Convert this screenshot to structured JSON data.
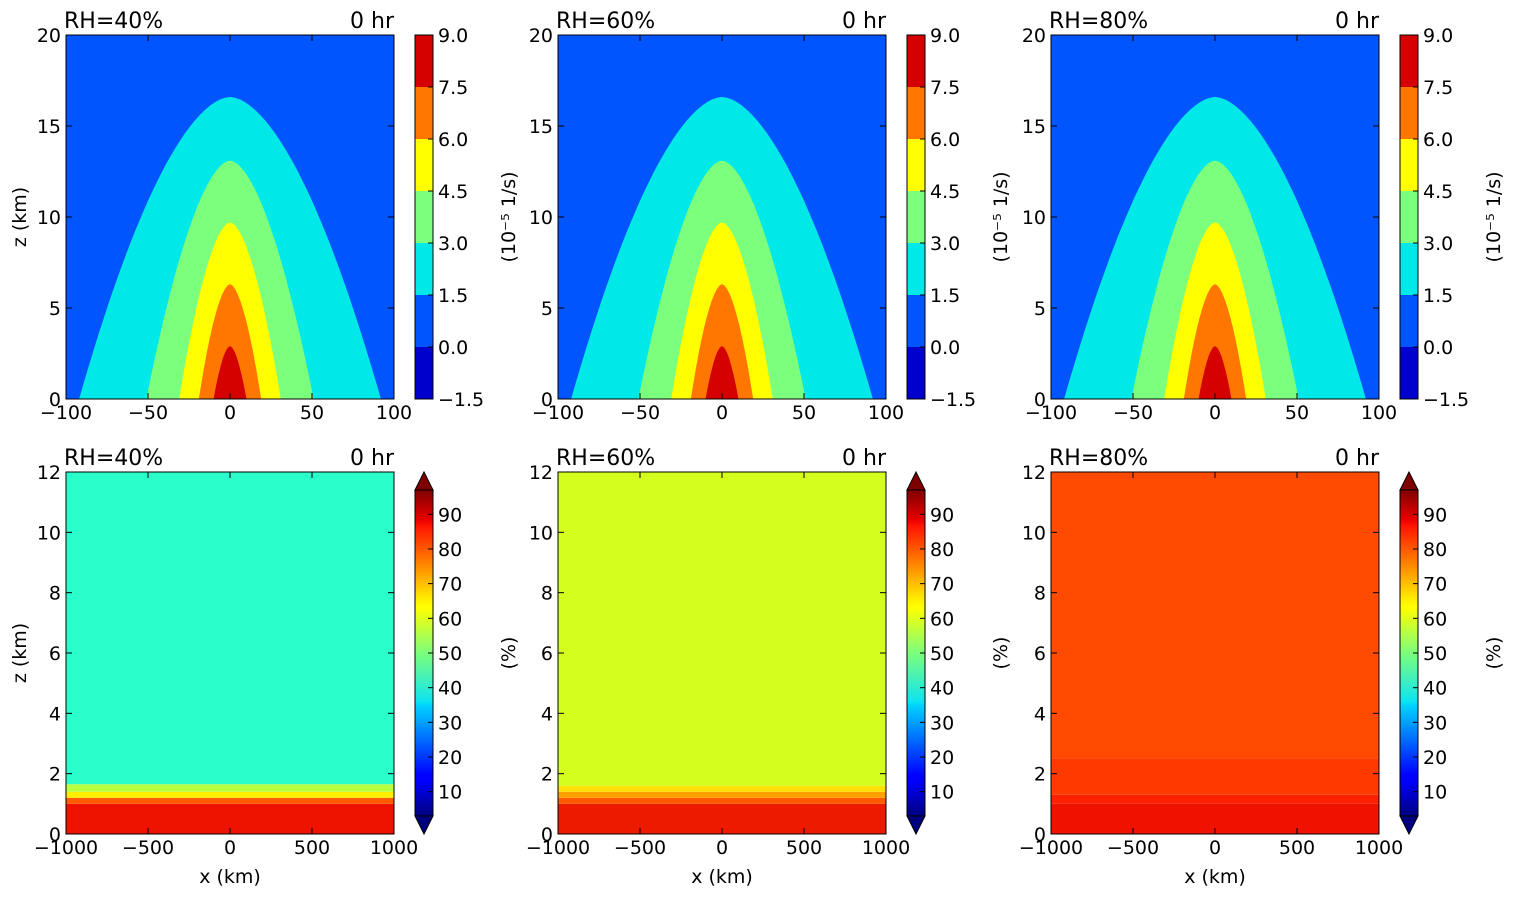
{
  "chart_data": [
    {
      "type": "heatmap",
      "field": "vorticity",
      "title_left": "RH=40%",
      "title_right": "0 hr",
      "xlabel": "",
      "ylabel": "z (km)",
      "xlim": [
        -100,
        100
      ],
      "ylim": [
        0,
        20
      ],
      "xticks": [
        "−100",
        "−50",
        "0",
        "50",
        "100"
      ],
      "xtick_values": [
        -100,
        -50,
        0,
        50,
        100
      ],
      "yticks": [
        "0",
        "5",
        "10",
        "15",
        "20"
      ],
      "ytick_values": [
        0,
        5,
        10,
        15,
        20
      ],
      "colorbar_label": "(10⁻⁵ 1/s)",
      "colorbar_ticks": [
        "−1.5",
        "0.0",
        "1.5",
        "3.0",
        "4.5",
        "6.0",
        "7.5",
        "9.0"
      ],
      "colorbar_levels": [
        -1.5,
        0.0,
        1.5,
        3.0,
        4.5,
        6.0,
        7.5,
        9.0
      ],
      "colorbar_colors": [
        "#0000cd",
        "#0055ff",
        "#00e8e8",
        "#7cff7c",
        "#ffff00",
        "#ff7700",
        "#d50000"
      ],
      "background_color": "#0055ff",
      "contours": [
        {
          "level": 1.5,
          "half_width_km": 92,
          "top_km": 16.6,
          "color": "#00e8e8"
        },
        {
          "level": 3.0,
          "half_width_km": 51,
          "top_km": 13.1,
          "color": "#7cff7c"
        },
        {
          "level": 4.5,
          "half_width_km": 31,
          "top_km": 9.7,
          "color": "#ffff00"
        },
        {
          "level": 6.0,
          "half_width_km": 19,
          "top_km": 6.3,
          "color": "#ff7700"
        },
        {
          "level": 7.5,
          "half_width_km": 10,
          "top_km": 2.9,
          "color": "#d50000"
        }
      ]
    },
    {
      "type": "heatmap",
      "field": "vorticity",
      "title_left": "RH=60%",
      "title_right": "0 hr",
      "xlabel": "",
      "ylabel": "",
      "xlim": [
        -100,
        100
      ],
      "ylim": [
        0,
        20
      ],
      "xticks": [
        "−100",
        "−50",
        "0",
        "50",
        "100"
      ],
      "xtick_values": [
        -100,
        -50,
        0,
        50,
        100
      ],
      "yticks": [
        "0",
        "5",
        "10",
        "15",
        "20"
      ],
      "ytick_values": [
        0,
        5,
        10,
        15,
        20
      ],
      "colorbar_label": "(10⁻⁵ 1/s)",
      "colorbar_ticks": [
        "−1.5",
        "0.0",
        "1.5",
        "3.0",
        "4.5",
        "6.0",
        "7.5",
        "9.0"
      ],
      "colorbar_levels": [
        -1.5,
        0.0,
        1.5,
        3.0,
        4.5,
        6.0,
        7.5,
        9.0
      ],
      "colorbar_colors": [
        "#0000cd",
        "#0055ff",
        "#00e8e8",
        "#7cff7c",
        "#ffff00",
        "#ff7700",
        "#d50000"
      ],
      "background_color": "#0055ff",
      "contours": [
        {
          "level": 1.5,
          "half_width_km": 92,
          "top_km": 16.6,
          "color": "#00e8e8"
        },
        {
          "level": 3.0,
          "half_width_km": 51,
          "top_km": 13.1,
          "color": "#7cff7c"
        },
        {
          "level": 4.5,
          "half_width_km": 31,
          "top_km": 9.7,
          "color": "#ffff00"
        },
        {
          "level": 6.0,
          "half_width_km": 19,
          "top_km": 6.3,
          "color": "#ff7700"
        },
        {
          "level": 7.5,
          "half_width_km": 10,
          "top_km": 2.9,
          "color": "#d50000"
        }
      ]
    },
    {
      "type": "heatmap",
      "field": "vorticity",
      "title_left": "RH=80%",
      "title_right": "0 hr",
      "xlabel": "",
      "ylabel": "",
      "xlim": [
        -100,
        100
      ],
      "ylim": [
        0,
        20
      ],
      "xticks": [
        "−100",
        "−50",
        "0",
        "50",
        "100"
      ],
      "xtick_values": [
        -100,
        -50,
        0,
        50,
        100
      ],
      "yticks": [
        "0",
        "5",
        "10",
        "15",
        "20"
      ],
      "ytick_values": [
        0,
        5,
        10,
        15,
        20
      ],
      "colorbar_label": "(10⁻⁵ 1/s)",
      "colorbar_ticks": [
        "−1.5",
        "0.0",
        "1.5",
        "3.0",
        "4.5",
        "6.0",
        "7.5",
        "9.0"
      ],
      "colorbar_levels": [
        -1.5,
        0.0,
        1.5,
        3.0,
        4.5,
        6.0,
        7.5,
        9.0
      ],
      "colorbar_colors": [
        "#0000cd",
        "#0055ff",
        "#00e8e8",
        "#7cff7c",
        "#ffff00",
        "#ff7700",
        "#d50000"
      ],
      "background_color": "#0055ff",
      "contours": [
        {
          "level": 1.5,
          "half_width_km": 92,
          "top_km": 16.6,
          "color": "#00e8e8"
        },
        {
          "level": 3.0,
          "half_width_km": 51,
          "top_km": 13.1,
          "color": "#7cff7c"
        },
        {
          "level": 4.5,
          "half_width_km": 31,
          "top_km": 9.7,
          "color": "#ffff00"
        },
        {
          "level": 6.0,
          "half_width_km": 19,
          "top_km": 6.3,
          "color": "#ff7700"
        },
        {
          "level": 7.5,
          "half_width_km": 10,
          "top_km": 2.9,
          "color": "#d50000"
        }
      ]
    },
    {
      "type": "heatmap",
      "field": "relative_humidity",
      "title_left": "RH=40%",
      "title_right": "0 hr",
      "xlabel": "x (km)",
      "ylabel": "z (km)",
      "xlim": [
        -1000,
        1000
      ],
      "ylim": [
        0,
        12
      ],
      "xticks": [
        "−1000",
        "−500",
        "0",
        "500",
        "1000"
      ],
      "xtick_values": [
        -1000,
        -500,
        0,
        500,
        1000
      ],
      "yticks": [
        "0",
        "2",
        "4",
        "6",
        "8",
        "10",
        "12"
      ],
      "ytick_values": [
        0,
        2,
        4,
        6,
        8,
        10,
        12
      ],
      "colorbar_label": "(%)",
      "colorbar_ticks": [
        "10",
        "20",
        "30",
        "40",
        "50",
        "60",
        "70",
        "80",
        "90"
      ],
      "colorbar_tick_values": [
        10,
        20,
        30,
        40,
        50,
        60,
        70,
        80,
        90
      ],
      "colorbar_range": [
        3,
        97
      ],
      "layers": [
        {
          "z0": 0,
          "z1": 1.0,
          "color": "#ee1200"
        },
        {
          "z0": 1.0,
          "z1": 1.2,
          "color": "#ff5a00"
        },
        {
          "z0": 1.2,
          "z1": 1.4,
          "color": "#ffee00"
        },
        {
          "z0": 1.4,
          "z1": 1.65,
          "color": "#b8ff40"
        },
        {
          "z0": 1.65,
          "z1": 12,
          "color": "#2affcc"
        }
      ]
    },
    {
      "type": "heatmap",
      "field": "relative_humidity",
      "title_left": "RH=60%",
      "title_right": "0 hr",
      "xlabel": "x (km)",
      "ylabel": "",
      "xlim": [
        -1000,
        1000
      ],
      "ylim": [
        0,
        12
      ],
      "xticks": [
        "−1000",
        "−500",
        "0",
        "500",
        "1000"
      ],
      "xtick_values": [
        -1000,
        -500,
        0,
        500,
        1000
      ],
      "yticks": [
        "0",
        "2",
        "4",
        "6",
        "8",
        "10",
        "12"
      ],
      "ytick_values": [
        0,
        2,
        4,
        6,
        8,
        10,
        12
      ],
      "colorbar_label": "(%)",
      "colorbar_ticks": [
        "10",
        "20",
        "30",
        "40",
        "50",
        "60",
        "70",
        "80",
        "90"
      ],
      "colorbar_tick_values": [
        10,
        20,
        30,
        40,
        50,
        60,
        70,
        80,
        90
      ],
      "colorbar_range": [
        3,
        97
      ],
      "layers": [
        {
          "z0": 0,
          "z1": 1.0,
          "color": "#ee1a00"
        },
        {
          "z0": 1.0,
          "z1": 1.2,
          "color": "#ff5a00"
        },
        {
          "z0": 1.2,
          "z1": 1.4,
          "color": "#ffa000"
        },
        {
          "z0": 1.4,
          "z1": 1.6,
          "color": "#ffe000"
        },
        {
          "z0": 1.6,
          "z1": 12,
          "color": "#d4ff1e"
        }
      ]
    },
    {
      "type": "heatmap",
      "field": "relative_humidity",
      "title_left": "RH=80%",
      "title_right": "0 hr",
      "xlabel": "x (km)",
      "ylabel": "",
      "xlim": [
        -1000,
        1000
      ],
      "ylim": [
        0,
        12
      ],
      "xticks": [
        "−1000",
        "−500",
        "0",
        "500",
        "1000"
      ],
      "xtick_values": [
        -1000,
        -500,
        0,
        500,
        1000
      ],
      "yticks": [
        "0",
        "2",
        "4",
        "6",
        "8",
        "10",
        "12"
      ],
      "ytick_values": [
        0,
        2,
        4,
        6,
        8,
        10,
        12
      ],
      "colorbar_label": "(%)",
      "colorbar_ticks": [
        "10",
        "20",
        "30",
        "40",
        "50",
        "60",
        "70",
        "80",
        "90"
      ],
      "colorbar_tick_values": [
        10,
        20,
        30,
        40,
        50,
        60,
        70,
        80,
        90
      ],
      "colorbar_range": [
        3,
        97
      ],
      "layers": [
        {
          "z0": 0,
          "z1": 1.0,
          "color": "#f01200"
        },
        {
          "z0": 1.0,
          "z1": 1.3,
          "color": "#fa2000"
        },
        {
          "z0": 1.3,
          "z1": 2.5,
          "color": "#ff3a00"
        },
        {
          "z0": 2.5,
          "z1": 12,
          "color": "#ff4a00"
        }
      ]
    }
  ]
}
